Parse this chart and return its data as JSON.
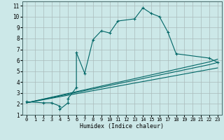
{
  "xlabel": "Humidex (Indice chaleur)",
  "bg_color": "#cce8e8",
  "line_color": "#006666",
  "xlim": [
    -0.5,
    23.5
  ],
  "ylim": [
    1,
    11.4
  ],
  "xticks": [
    0,
    1,
    2,
    3,
    4,
    5,
    6,
    7,
    8,
    9,
    10,
    11,
    12,
    13,
    14,
    15,
    16,
    17,
    18,
    19,
    20,
    21,
    22,
    23
  ],
  "yticks": [
    1,
    2,
    3,
    4,
    5,
    6,
    7,
    8,
    9,
    10,
    11
  ],
  "curve1_x": [
    0,
    2,
    3,
    4,
    4,
    5,
    5,
    6,
    6,
    7,
    8,
    9,
    10,
    11,
    13,
    14,
    15,
    16,
    17,
    18,
    22,
    23
  ],
  "curve1_y": [
    2.2,
    2.1,
    2.1,
    1.8,
    1.5,
    2.1,
    2.5,
    3.5,
    6.7,
    4.8,
    7.9,
    8.7,
    8.5,
    9.6,
    9.8,
    10.8,
    10.3,
    10.0,
    8.6,
    6.6,
    6.2,
    5.8
  ],
  "line2_x": [
    0,
    22,
    23
  ],
  "line2_y": [
    2.1,
    5.85,
    6.1
  ],
  "line3_x": [
    0,
    22,
    23
  ],
  "line3_y": [
    2.1,
    5.6,
    5.8
  ],
  "line4_x": [
    0,
    23
  ],
  "line4_y": [
    2.1,
    5.3
  ]
}
